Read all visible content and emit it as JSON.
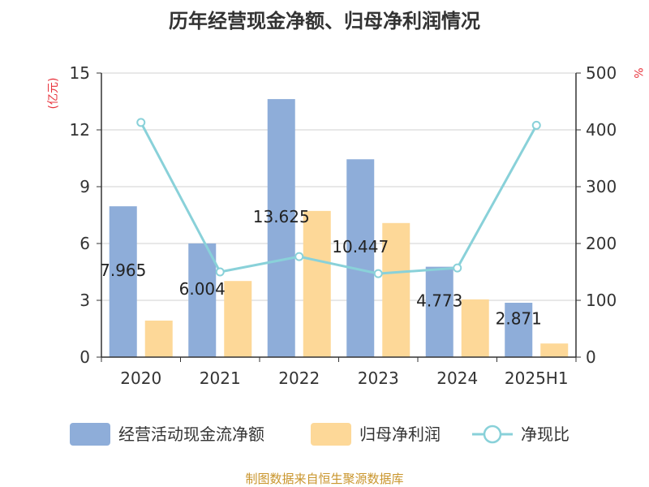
{
  "colors": {
    "cash_flow": "#8eadd9",
    "net_profit": "#fdd898",
    "ratio": "#89d1d9",
    "grid": "#d0d0d0",
    "axis": "#333333",
    "unit": "#e8333c",
    "source": "#c9952c"
  },
  "source": "制图数据来自恒生聚源数据库",
  "chart_data": {
    "type": "bar",
    "title": "历年经营现金净额、归母净利润情况",
    "y_left_label": "(亿元)",
    "y_right_label": "%",
    "ylim_left": [
      0,
      15
    ],
    "ylim_right": [
      0,
      500
    ],
    "y_left_ticks": [
      0,
      3,
      6,
      9,
      12,
      15
    ],
    "y_right_ticks": [
      0,
      100,
      200,
      300,
      400,
      500
    ],
    "grid": true,
    "legend_position": "bottom",
    "categories": [
      "2020",
      "2021",
      "2022",
      "2023",
      "2024",
      "2025H1"
    ],
    "series": [
      {
        "name": "经营活动现金流净额",
        "type": "bar",
        "axis": "left",
        "values": [
          7.965,
          6.004,
          13.625,
          10.447,
          4.773,
          2.871
        ],
        "labels": [
          "7.965",
          "6.004",
          "13.625",
          "10.447",
          "4.773",
          "2.871"
        ]
      },
      {
        "name": "归母净利润",
        "type": "bar",
        "axis": "left",
        "values": [
          1.93,
          4.02,
          7.72,
          7.08,
          3.05,
          0.72
        ]
      },
      {
        "name": "净现比",
        "type": "line",
        "axis": "right",
        "values": [
          413,
          150,
          177,
          147,
          157,
          408
        ]
      }
    ]
  }
}
